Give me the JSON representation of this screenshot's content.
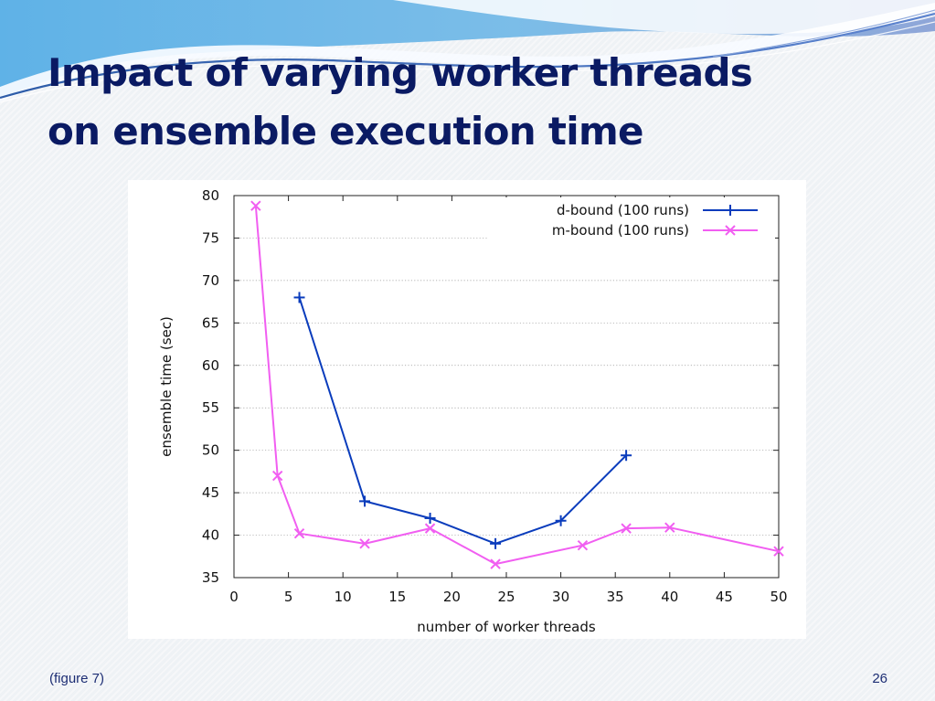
{
  "slide": {
    "title_line_1": "Impact of varying worker threads",
    "title_line_2": "on ensemble execution time",
    "footer_left": "(figure 7)",
    "page_number": "26"
  },
  "chart_data": {
    "type": "line",
    "xlabel": "number of worker threads",
    "ylabel": "ensemble time (sec)",
    "xlim": [
      0,
      50
    ],
    "ylim": [
      35,
      80
    ],
    "x_ticks": [
      0,
      5,
      10,
      15,
      20,
      25,
      30,
      35,
      40,
      45,
      50
    ],
    "y_ticks": [
      35,
      40,
      45,
      50,
      55,
      60,
      65,
      70,
      75,
      80
    ],
    "grid": true,
    "legend_position": "top-right",
    "series": [
      {
        "name": "d-bound (100 runs)",
        "color": "#0a3cbc",
        "marker": "plus",
        "x": [
          6,
          12,
          18,
          24,
          30,
          36
        ],
        "y": [
          68,
          44,
          42,
          39,
          41.7,
          49.4
        ]
      },
      {
        "name": "m-bound (100 runs)",
        "color": "#f15ef1",
        "marker": "cross",
        "x": [
          2,
          4,
          6,
          12,
          18,
          24,
          32,
          36,
          40,
          50
        ],
        "y": [
          78.8,
          47,
          40.2,
          39,
          40.8,
          36.6,
          38.8,
          40.8,
          40.9,
          38.1
        ]
      }
    ]
  }
}
